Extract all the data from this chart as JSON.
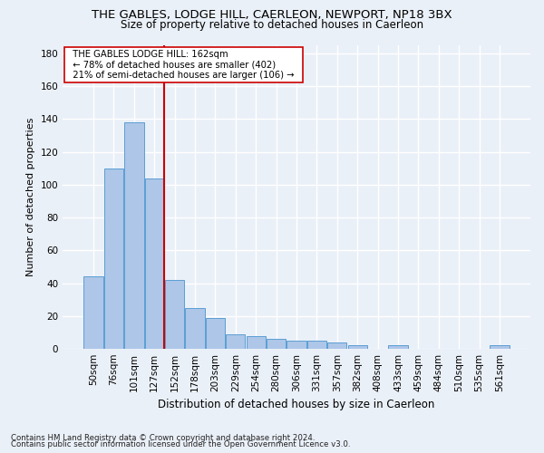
{
  "title": "THE GABLES, LODGE HILL, CAERLEON, NEWPORT, NP18 3BX",
  "subtitle": "Size of property relative to detached houses in Caerleon",
  "xlabel": "Distribution of detached houses by size in Caerleon",
  "ylabel": "Number of detached properties",
  "footnote1": "Contains HM Land Registry data © Crown copyright and database right 2024.",
  "footnote2": "Contains public sector information licensed under the Open Government Licence v3.0.",
  "bar_values": [
    44,
    110,
    138,
    104,
    42,
    25,
    19,
    9,
    8,
    6,
    5,
    5,
    4,
    2,
    0,
    2,
    0,
    0,
    0,
    0,
    2
  ],
  "bar_labels": [
    "50sqm",
    "76sqm",
    "101sqm",
    "127sqm",
    "152sqm",
    "178sqm",
    "203sqm",
    "229sqm",
    "254sqm",
    "280sqm",
    "306sqm",
    "331sqm",
    "357sqm",
    "382sqm",
    "408sqm",
    "433sqm",
    "459sqm",
    "484sqm",
    "510sqm",
    "535sqm",
    "561sqm"
  ],
  "bar_color": "#aec6e8",
  "bar_edge_color": "#5a9fd4",
  "vline_color": "#cc0000",
  "vline_pos": 3.5,
  "annotation_text": "  THE GABLES LODGE HILL: 162sqm  \n  ← 78% of detached houses are smaller (402)  \n  21% of semi-detached houses are larger (106) →  ",
  "annotation_box_color": "#ffffff",
  "annotation_box_edge": "#cc0000",
  "ylim": [
    0,
    185
  ],
  "yticks": [
    0,
    20,
    40,
    60,
    80,
    100,
    120,
    140,
    160,
    180
  ],
  "bg_color": "#eaf0f8",
  "plot_bg_color": "#eaf0f8",
  "grid_color": "#ffffff",
  "title_fontsize": 9.5,
  "subtitle_fontsize": 8.5,
  "xlabel_fontsize": 8.5,
  "ylabel_fontsize": 8,
  "tick_fontsize": 7.5,
  "footnote_fontsize": 6.2
}
